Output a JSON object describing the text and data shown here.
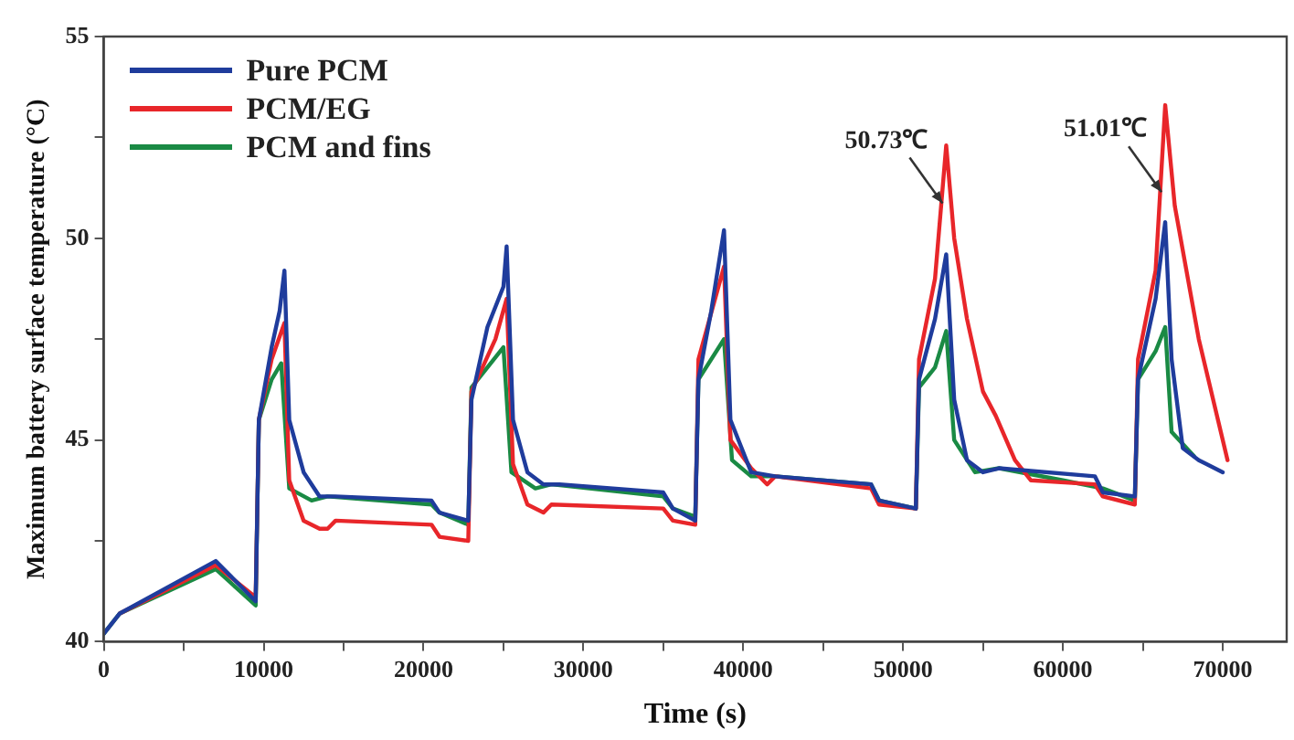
{
  "chart_data": {
    "type": "line",
    "xlabel": "Time (s)",
    "ylabel": "Maximum battery surface temperature (°C)",
    "xlim": [
      0,
      74000
    ],
    "ylim": [
      40,
      55
    ],
    "xticks": [
      0,
      {
        "value": 5000,
        "label": null
      },
      10000,
      {
        "value": 15000,
        "label": null
      },
      20000,
      {
        "value": 25000,
        "label": null
      },
      30000,
      {
        "value": 35000,
        "label": null
      },
      40000,
      {
        "value": 45000,
        "label": null
      },
      50000,
      {
        "value": 55000,
        "label": null
      },
      60000,
      {
        "value": 65000,
        "label": null
      },
      70000
    ],
    "yticks": [
      40,
      {
        "value": 42.5,
        "label": null
      },
      45,
      {
        "value": 47.5,
        "label": null
      },
      50,
      {
        "value": 52.5,
        "label": null
      },
      55
    ],
    "grid": false,
    "legend": "top left",
    "marker": "none",
    "line_style": "solid",
    "series": [
      {
        "name": "Pure PCM",
        "color": "#1f3c9c",
        "x": [
          0,
          1000,
          7000,
          9500,
          9700,
          10500,
          11000,
          11300,
          11600,
          12500,
          13500,
          14500,
          20500,
          21000,
          22800,
          23000,
          24000,
          25000,
          25200,
          25600,
          26500,
          27500,
          28500,
          35000,
          35600,
          37000,
          37200,
          38000,
          38800,
          39200,
          40500,
          42000,
          48000,
          48500,
          50800,
          51000,
          52000,
          52700,
          53200,
          54000,
          55000,
          56000,
          62000,
          62500,
          64500,
          64700,
          65800,
          66400,
          66800,
          67500,
          68500,
          70000
        ],
        "values": [
          40.2,
          40.7,
          42.0,
          41.0,
          45.5,
          47.3,
          48.2,
          49.2,
          45.5,
          44.2,
          43.6,
          43.6,
          43.5,
          43.2,
          43.0,
          46.0,
          47.8,
          48.8,
          49.8,
          45.5,
          44.2,
          43.9,
          43.9,
          43.7,
          43.3,
          43.0,
          46.5,
          48.2,
          50.2,
          45.5,
          44.2,
          44.1,
          43.9,
          43.5,
          43.3,
          46.5,
          48.0,
          49.6,
          46.0,
          44.5,
          44.2,
          44.3,
          44.1,
          43.7,
          43.6,
          46.5,
          48.5,
          50.4,
          47.0,
          44.8,
          44.5,
          44.2
        ]
      },
      {
        "name": "PCM/EG",
        "color": "#e8262a",
        "x": [
          1000,
          7000,
          9500,
          9700,
          10500,
          11300,
          11600,
          12500,
          13500,
          14000,
          14500,
          20500,
          21000,
          22800,
          23000,
          24500,
          25200,
          25600,
          26500,
          27500,
          28000,
          35000,
          35600,
          37000,
          37200,
          38800,
          39200,
          40500,
          41500,
          42000,
          48000,
          48500,
          50800,
          51000,
          52000,
          52700,
          53200,
          54000,
          55000,
          55800,
          57000,
          58000,
          62000,
          62500,
          64500,
          64700,
          65800,
          66400,
          67000,
          68500,
          70300
        ],
        "values": [
          40.7,
          41.9,
          41.1,
          45.5,
          47.0,
          47.9,
          44.0,
          43.0,
          42.8,
          42.8,
          43.0,
          42.9,
          42.6,
          42.5,
          46.2,
          47.5,
          48.5,
          44.4,
          43.4,
          43.2,
          43.4,
          43.3,
          43.0,
          42.9,
          47.0,
          49.3,
          45.0,
          44.3,
          43.9,
          44.1,
          43.8,
          43.4,
          43.3,
          47.0,
          49.0,
          52.3,
          50.0,
          48.0,
          46.2,
          45.6,
          44.5,
          44.0,
          43.9,
          43.6,
          43.4,
          47.0,
          49.2,
          53.3,
          50.8,
          47.5,
          44.5
        ]
      },
      {
        "name": "PCM and fins",
        "color": "#1a8a44",
        "x": [
          0,
          1000,
          7000,
          9500,
          9700,
          10500,
          11100,
          11600,
          13000,
          14000,
          20500,
          21000,
          22800,
          23000,
          25000,
          25500,
          27000,
          28000,
          35000,
          35600,
          37000,
          37200,
          38800,
          39300,
          40500,
          42000,
          48000,
          48500,
          50800,
          51000,
          52000,
          52700,
          53200,
          54500,
          56000,
          60000,
          62500,
          64500,
          64700,
          65800,
          66400,
          66800,
          68200
        ],
        "values": [
          40.2,
          40.7,
          41.8,
          40.9,
          45.5,
          46.5,
          46.9,
          43.8,
          43.5,
          43.6,
          43.4,
          43.2,
          42.9,
          46.3,
          47.3,
          44.2,
          43.8,
          43.9,
          43.6,
          43.3,
          43.1,
          46.5,
          47.5,
          44.5,
          44.1,
          44.1,
          43.9,
          43.5,
          43.3,
          46.3,
          46.8,
          47.7,
          45.0,
          44.2,
          44.3,
          44.0,
          43.8,
          43.5,
          46.5,
          47.2,
          47.8,
          45.2,
          44.6
        ]
      }
    ],
    "annotations": [
      {
        "text": "50.73℃",
        "x": 52700,
        "y": 50.73
      },
      {
        "text": "51.01℃",
        "x": 66400,
        "y": 51.01
      }
    ]
  }
}
